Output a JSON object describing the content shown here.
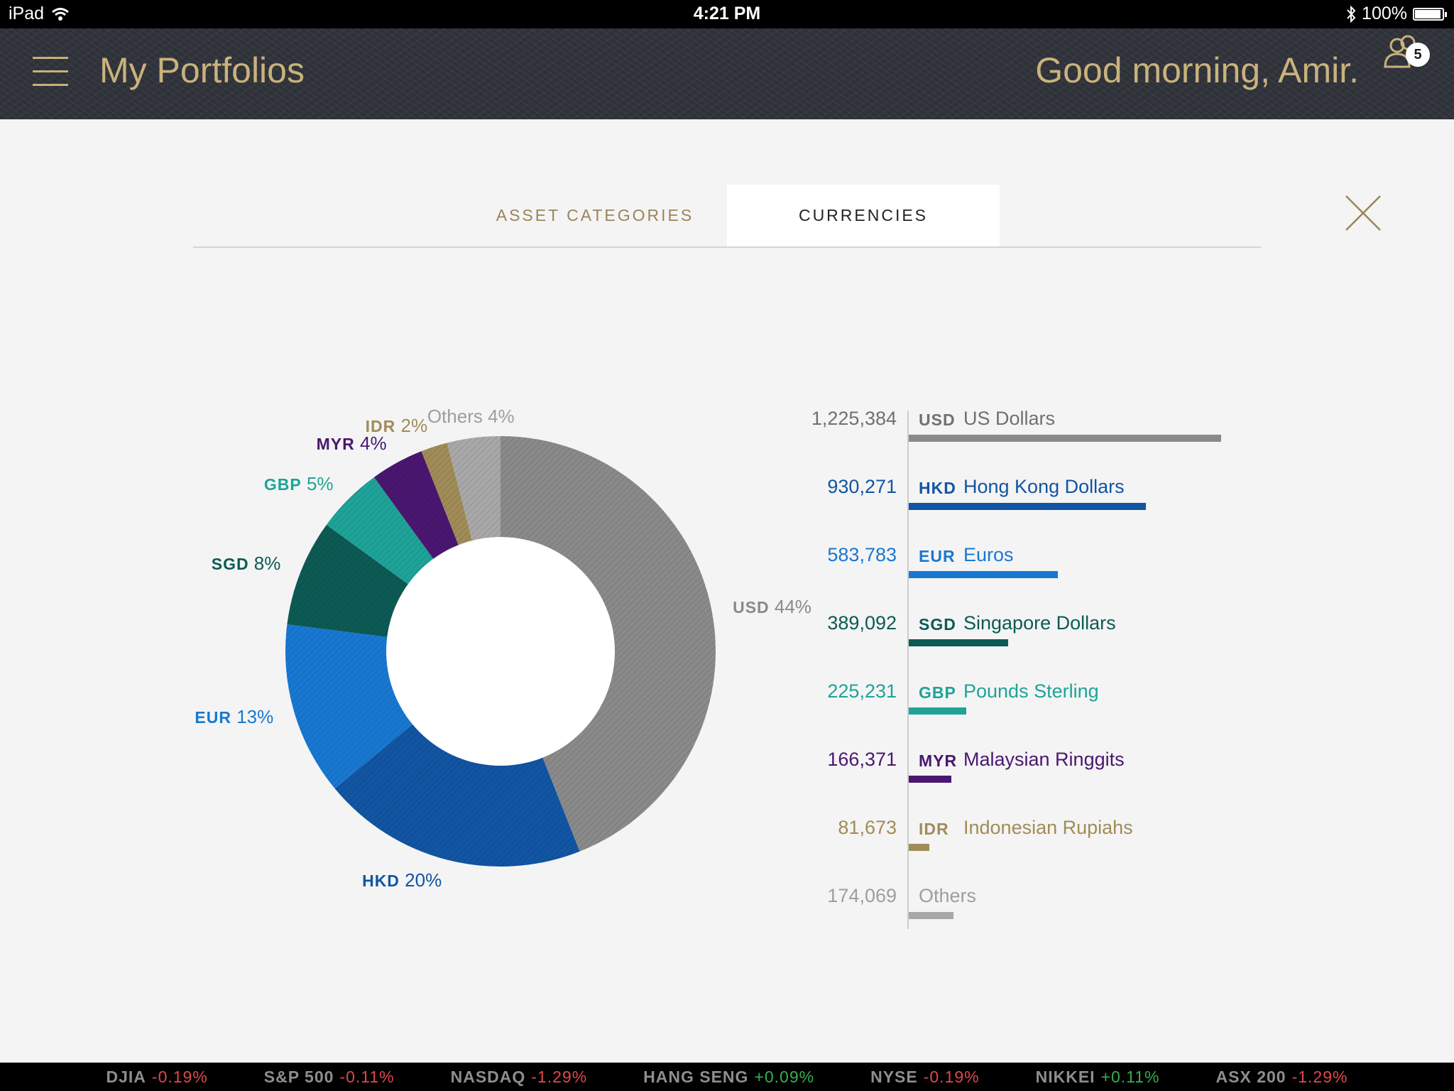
{
  "status_bar": {
    "device": "iPad",
    "time": "4:21 PM",
    "battery_text": "100%",
    "battery_level": 1.0
  },
  "header": {
    "title": "My Portfolios",
    "greeting": "Good morning, Amir.",
    "notification_count": "5"
  },
  "tabs": [
    {
      "label": "ASSET CATEGORIES",
      "active": false
    },
    {
      "label": "CURRENCIES",
      "active": true
    }
  ],
  "colors": {
    "gold": "#c9b27c",
    "USD": "#8a8a8a",
    "HKD": "#1155a3",
    "EUR": "#1878d1",
    "SGD": "#0d5a54",
    "GBP": "#1fa398",
    "MYR": "#4a1770",
    "IDR": "#a08c58",
    "Others": "#a8a8a8"
  },
  "chart_data": {
    "type": "pie",
    "donut": true,
    "slices": [
      {
        "code": "USD",
        "pct_label": "44%",
        "value": 44
      },
      {
        "code": "HKD",
        "pct_label": "20%",
        "value": 20
      },
      {
        "code": "EUR",
        "pct_label": "13%",
        "value": 13
      },
      {
        "code": "SGD",
        "pct_label": "8%",
        "value": 8
      },
      {
        "code": "GBP",
        "pct_label": "5%",
        "value": 5
      },
      {
        "code": "MYR",
        "pct_label": "4%",
        "value": 4
      },
      {
        "code": "IDR",
        "pct_label": "2%",
        "value": 2
      },
      {
        "code": "Others",
        "pct_label": "4%",
        "value": 4
      }
    ]
  },
  "currency_list": [
    {
      "amount": "1,225,384",
      "code": "USD",
      "name": "US Dollars",
      "value": 1225384
    },
    {
      "amount": "930,271",
      "code": "HKD",
      "name": "Hong Kong Dollars",
      "value": 930271
    },
    {
      "amount": "583,783",
      "code": "EUR",
      "name": "Euros",
      "value": 583783
    },
    {
      "amount": "389,092",
      "code": "SGD",
      "name": "Singapore Dollars",
      "value": 389092
    },
    {
      "amount": "225,231",
      "code": "GBP",
      "name": "Pounds Sterling",
      "value": 225231
    },
    {
      "amount": "166,371",
      "code": "MYR",
      "name": "Malaysian Ringgits",
      "value": 166371
    },
    {
      "amount": "81,673",
      "code": "IDR",
      "name": "Indonesian Rupiahs",
      "value": 81673
    },
    {
      "amount": "174,069",
      "code": "",
      "name": "Others",
      "value": 174069
    }
  ],
  "ticker": [
    {
      "index": "DJIA",
      "change": "-0.19%",
      "direction": "down"
    },
    {
      "index": "S&P 500",
      "change": "-0.11%",
      "direction": "down"
    },
    {
      "index": "NASDAQ",
      "change": "-1.29%",
      "direction": "down"
    },
    {
      "index": "HANG SENG",
      "change": "+0.09%",
      "direction": "up"
    },
    {
      "index": "NYSE",
      "change": "-0.19%",
      "direction": "down"
    },
    {
      "index": "NIKKEI",
      "change": "+0.11%",
      "direction": "up"
    },
    {
      "index": "ASX 200",
      "change": "-1.29%",
      "direction": "down"
    }
  ]
}
